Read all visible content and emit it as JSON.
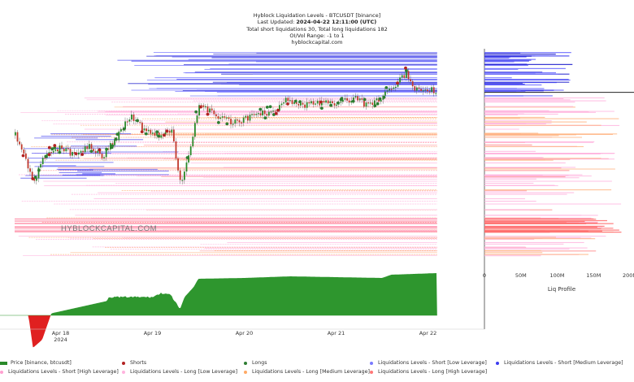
{
  "header": {
    "title": "Hyblock Liquidation Levels - BTCUSDT [binance]",
    "updated_prefix": "Last Updated: ",
    "updated_value": "2024-04-22 12:11:00 (UTC)",
    "totals": "Total short liquidations 30, Total long liquidations 182",
    "oi_vol": "OI/Vol Range: -1 to 1",
    "site": "hyblockcapital.com"
  },
  "watermark": "HYBLOCKCAPITAL.COM",
  "colors": {
    "short_low": "#6b6bff",
    "short_medium": "#3d3df0",
    "short_high": "#1a1acc",
    "long_low": "#ffb3de",
    "long_medium": "#ffb380",
    "long_high": "#ff8c8c",
    "candle_up": "#2a8a2a",
    "candle_down": "#c0392b",
    "delta_pos": "#2e962e",
    "delta_neg": "#e02020"
  },
  "chart_data": {
    "type": "line",
    "x_tick_labels": [
      "Apr 18",
      "Apr 19",
      "Apr 20",
      "Apr 21",
      "Apr 22"
    ],
    "x_year_label": "2024",
    "price_series": {
      "name": "Price [binance, btcusdt]",
      "t": [
        0.0,
        0.2,
        0.35,
        0.5,
        0.65,
        0.8,
        0.95,
        1.1,
        1.25,
        1.32,
        1.4,
        1.55,
        1.7,
        1.8,
        1.92,
        2.0,
        2.08,
        2.2,
        2.4,
        2.6,
        2.8,
        2.95,
        3.1,
        3.3,
        3.5,
        3.7,
        3.85,
        4.0,
        4.15,
        4.25,
        4.35,
        4.45,
        4.6
      ],
      "level": [
        0.62,
        0.25,
        0.5,
        0.52,
        0.46,
        0.54,
        0.45,
        0.6,
        0.78,
        0.74,
        0.66,
        0.62,
        0.67,
        0.22,
        0.57,
        0.88,
        0.83,
        0.76,
        0.72,
        0.78,
        0.81,
        0.9,
        0.86,
        0.88,
        0.88,
        0.92,
        0.85,
        0.93,
        1.02,
        1.12,
        1.0,
        0.99,
        0.97
      ]
    },
    "liq_profile": {
      "label": "Liq Profile",
      "x_ticks": [
        "0",
        "50M",
        "100M",
        "150M",
        "200M"
      ],
      "xlim_millions": [
        0,
        200
      ]
    },
    "lower_panel": {
      "t": [
        0.0,
        0.15,
        0.2,
        0.3,
        0.4,
        0.6,
        0.8,
        1.0,
        1.02,
        1.5,
        1.6,
        1.7,
        1.8,
        1.85,
        1.95,
        2.0,
        2.5,
        3.0,
        3.5,
        4.0,
        4.1,
        4.6
      ],
      "level": [
        0.0,
        0.0,
        -0.8,
        -0.6,
        0.05,
        0.15,
        0.25,
        0.35,
        0.45,
        0.45,
        0.55,
        0.5,
        0.15,
        0.45,
        0.7,
        0.9,
        0.92,
        0.96,
        0.94,
        0.92,
        1.0,
        1.04
      ]
    }
  },
  "legend": [
    {
      "label": "Price [binance, btcusdt]",
      "kind": "swatch",
      "color": "#2a8a2a"
    },
    {
      "label": "Shorts",
      "kind": "dot",
      "color": "#b22222"
    },
    {
      "label": "Longs",
      "kind": "dot",
      "color": "#2e7d32"
    },
    {
      "label": "Liquidations Levels - Short [Low Leverage]",
      "kind": "dot",
      "color": "#7a7aff"
    },
    {
      "label": "Liquidations Levels - Short [Medium Leverage]",
      "kind": "dot",
      "color": "#3d3df0"
    },
    {
      "label": "Liquidations Levels - Short [High Leverage]",
      "kind": "dot",
      "color": "#ffa0d0"
    },
    {
      "label": "Liquidations Levels - Long [Low Leverage]",
      "kind": "dot",
      "color": "#ffb3de"
    },
    {
      "label": "Liquidations Levels - Long [Medium Leverage]",
      "kind": "dot",
      "color": "#ffaa66"
    },
    {
      "label": "Liquidations Levels - Long [High Leverage]",
      "kind": "dot",
      "color": "#ff7777"
    }
  ]
}
